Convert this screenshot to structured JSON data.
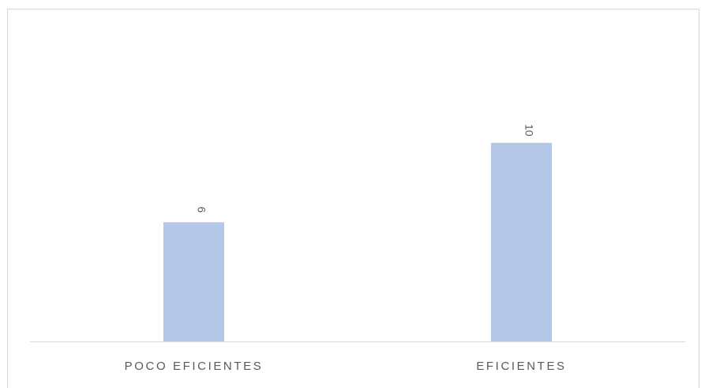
{
  "chart_data": {
    "type": "bar",
    "title": "",
    "xlabel": "",
    "ylabel": "",
    "categories": [
      "POCO EFICIENTES",
      "EFICIENTES"
    ],
    "values": [
      6,
      10
    ],
    "data_labels": [
      "6",
      "10"
    ],
    "ylim": [
      0,
      16
    ],
    "grid": false,
    "legend": "none",
    "data_label_orientation": "rotated",
    "colors": {
      "bar": "#b4c7e7",
      "axis": "#d9d9d9",
      "text": "#595959",
      "border": "#d9d9d9"
    }
  }
}
